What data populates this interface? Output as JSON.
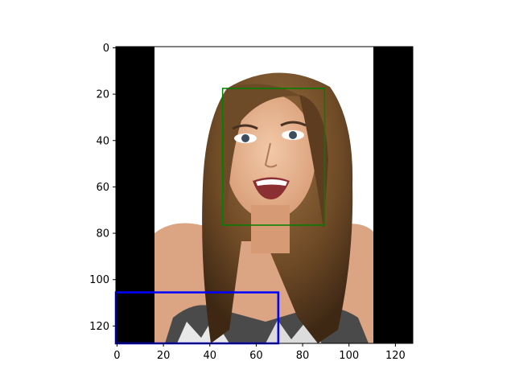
{
  "figure": {
    "image_size": [
      128,
      128
    ],
    "x_ticks": [
      "0",
      "20",
      "40",
      "60",
      "80",
      "100",
      "120"
    ],
    "y_ticks": [
      "0",
      "20",
      "40",
      "60",
      "80",
      "100",
      "120"
    ],
    "x_tick_values": [
      0,
      20,
      40,
      60,
      80,
      100,
      120
    ],
    "y_tick_values": [
      0,
      20,
      40,
      60,
      80,
      100,
      120
    ],
    "image_content": {
      "left_black_border": [
        0,
        17
      ],
      "right_black_border": [
        111,
        128
      ],
      "photo": "portrait of smiling woman with long brown hair on white background"
    },
    "boxes": [
      {
        "name": "face-box",
        "color": "#008000",
        "x0": 46,
        "y0": 18,
        "x1": 90,
        "y1": 77
      },
      {
        "name": "region-box",
        "color": "#0000ff",
        "x0": 0,
        "y0": 106,
        "x1": 70,
        "y1": 128
      }
    ]
  }
}
